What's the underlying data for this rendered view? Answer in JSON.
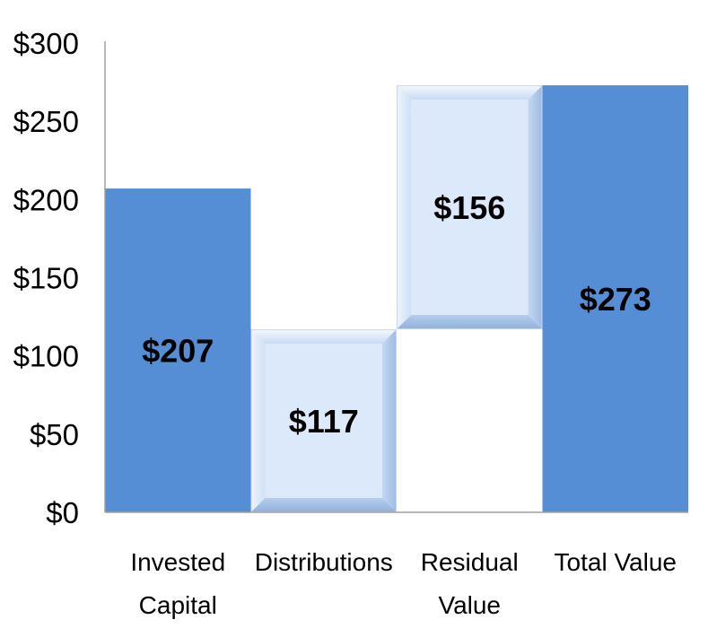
{
  "chart_data": {
    "type": "bar",
    "subtype": "waterfall",
    "title": "",
    "xlabel": "",
    "ylabel": "",
    "ylim": [
      0,
      300
    ],
    "y_ticks": [
      "$0",
      "$50",
      "$100",
      "$150",
      "$200",
      "$250",
      "$300"
    ],
    "grid": false,
    "categories": [
      [
        "Invested",
        "Capital"
      ],
      [
        "Distributions"
      ],
      [
        "Residual",
        "Value"
      ],
      [
        "Total Value"
      ]
    ],
    "bars": [
      {
        "base": 0,
        "value": 207,
        "label": "$207",
        "style": "solid"
      },
      {
        "base": 0,
        "value": 117,
        "label": "$117",
        "style": "bevel"
      },
      {
        "base": 117,
        "value": 156,
        "label": "$156",
        "style": "bevel"
      },
      {
        "base": 0,
        "value": 273,
        "label": "$273",
        "style": "solid"
      }
    ],
    "colors": {
      "solid": "#558ED5",
      "bevel_light": "#DCE9FB",
      "bevel_dark": "#A9C4E8",
      "axis": "#A0A0A0"
    }
  }
}
